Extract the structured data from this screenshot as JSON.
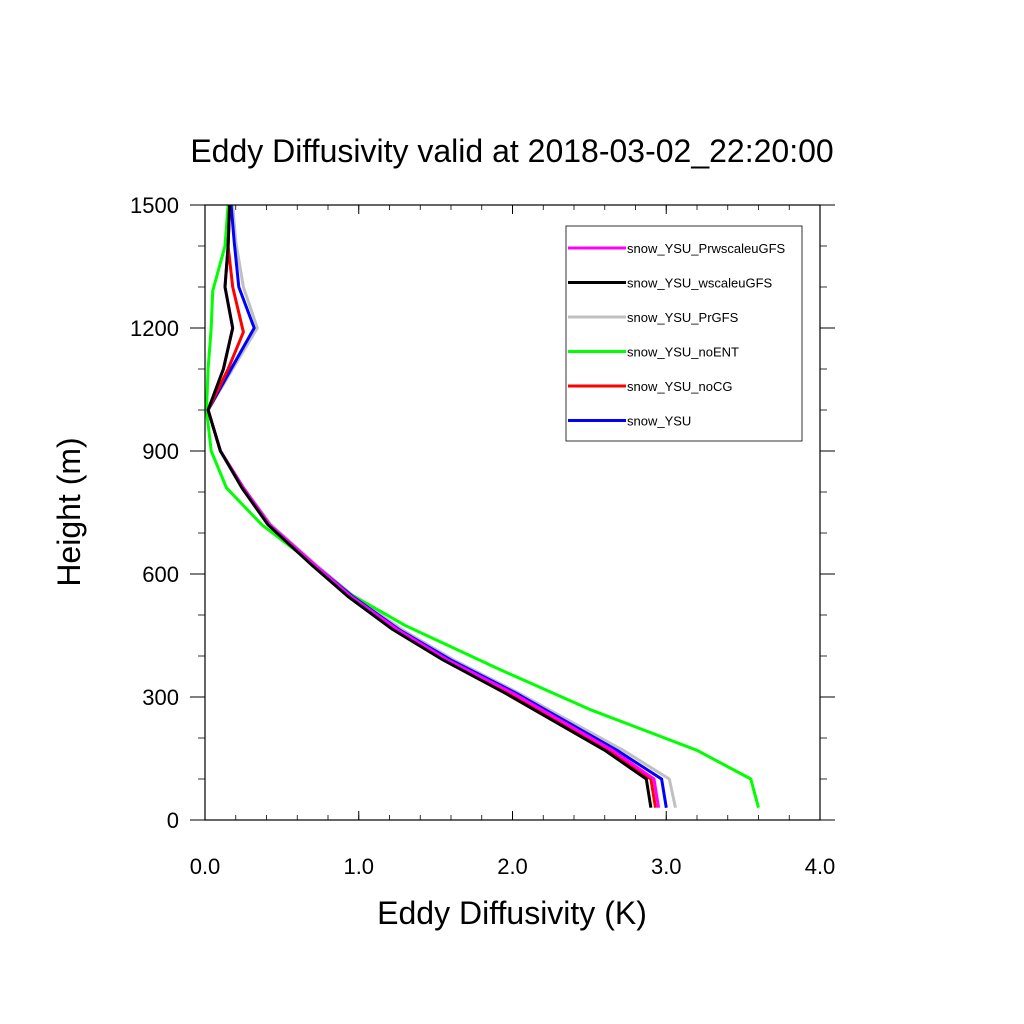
{
  "chart_data": {
    "type": "line",
    "title": "Eddy Diffusivity valid at 2018-03-02_22:20:00",
    "xlabel": "Eddy Diffusivity (K)",
    "ylabel": "Height (m)",
    "xlim": [
      0,
      4
    ],
    "ylim": [
      0,
      1500
    ],
    "x_ticks": [
      0,
      1,
      2,
      3,
      4
    ],
    "x_tick_labels": [
      "0.0",
      "1.0",
      "2.0",
      "3.0",
      "4.0"
    ],
    "y_ticks": [
      0,
      300,
      600,
      900,
      1200,
      1500
    ],
    "y_tick_labels": [
      "0",
      "300",
      "600",
      "900",
      "1200",
      "1500"
    ],
    "grid": false,
    "legend_position": "top-right",
    "series": [
      {
        "name": "snow_YSU_PrwscaleuGFS",
        "color": "#ff00ff",
        "points": [
          [
            2.95,
            30
          ],
          [
            2.92,
            100
          ],
          [
            2.65,
            170
          ],
          [
            2.0,
            310
          ],
          [
            1.58,
            390
          ],
          [
            1.25,
            465
          ],
          [
            0.95,
            545
          ],
          [
            0.72,
            620
          ],
          [
            0.42,
            720
          ],
          [
            0.25,
            810
          ],
          [
            0.1,
            900
          ],
          [
            0.02,
            1000
          ],
          [
            0.12,
            1100
          ],
          [
            0.18,
            1200
          ],
          [
            0.13,
            1300
          ],
          [
            0.15,
            1400
          ],
          [
            0.16,
            1500
          ]
        ]
      },
      {
        "name": "snow_YSU_wscaleuGFS",
        "color": "#000000",
        "points": [
          [
            2.9,
            30
          ],
          [
            2.87,
            100
          ],
          [
            2.6,
            170
          ],
          [
            1.95,
            310
          ],
          [
            1.55,
            390
          ],
          [
            1.22,
            465
          ],
          [
            0.93,
            545
          ],
          [
            0.7,
            620
          ],
          [
            0.41,
            720
          ],
          [
            0.24,
            810
          ],
          [
            0.1,
            900
          ],
          [
            0.02,
            1000
          ],
          [
            0.12,
            1100
          ],
          [
            0.18,
            1200
          ],
          [
            0.13,
            1300
          ],
          [
            0.15,
            1400
          ],
          [
            0.16,
            1500
          ]
        ]
      },
      {
        "name": "snow_YSU_PrGFS",
        "color": "#c0c0c0",
        "points": [
          [
            3.06,
            30
          ],
          [
            3.02,
            100
          ],
          [
            2.72,
            170
          ],
          [
            2.04,
            310
          ],
          [
            1.62,
            390
          ],
          [
            1.28,
            465
          ],
          [
            0.97,
            545
          ],
          [
            0.73,
            620
          ],
          [
            0.43,
            720
          ],
          [
            0.25,
            810
          ],
          [
            0.1,
            900
          ],
          [
            0.02,
            1000
          ],
          [
            0.18,
            1100
          ],
          [
            0.34,
            1200
          ],
          [
            0.25,
            1300
          ],
          [
            0.2,
            1410
          ],
          [
            0.18,
            1500
          ]
        ]
      },
      {
        "name": "snow_YSU_noENT",
        "color": "#00ff00",
        "points": [
          [
            3.6,
            30
          ],
          [
            3.55,
            100
          ],
          [
            3.2,
            170
          ],
          [
            2.5,
            270
          ],
          [
            1.9,
            370
          ],
          [
            1.3,
            475
          ],
          [
            0.95,
            550
          ],
          [
            0.65,
            640
          ],
          [
            0.37,
            720
          ],
          [
            0.14,
            810
          ],
          [
            0.04,
            900
          ],
          [
            0.01,
            1000
          ],
          [
            0.02,
            1100
          ],
          [
            0.04,
            1200
          ],
          [
            0.05,
            1290
          ],
          [
            0.13,
            1400
          ],
          [
            0.15,
            1500
          ]
        ]
      },
      {
        "name": "snow_YSU_noCG",
        "color": "#ff0000",
        "points": [
          [
            2.93,
            30
          ],
          [
            2.9,
            100
          ],
          [
            2.63,
            170
          ],
          [
            1.98,
            310
          ],
          [
            1.57,
            390
          ],
          [
            1.24,
            465
          ],
          [
            0.94,
            545
          ],
          [
            0.71,
            620
          ],
          [
            0.42,
            720
          ],
          [
            0.25,
            810
          ],
          [
            0.1,
            900
          ],
          [
            0.02,
            1000
          ],
          [
            0.15,
            1100
          ],
          [
            0.25,
            1190
          ],
          [
            0.18,
            1300
          ],
          [
            0.15,
            1400
          ],
          [
            0.16,
            1500
          ]
        ]
      },
      {
        "name": "snow_YSU",
        "color": "#0000ff",
        "points": [
          [
            3.0,
            30
          ],
          [
            2.97,
            100
          ],
          [
            2.68,
            170
          ],
          [
            2.02,
            310
          ],
          [
            1.6,
            390
          ],
          [
            1.26,
            465
          ],
          [
            0.96,
            545
          ],
          [
            0.72,
            620
          ],
          [
            0.42,
            720
          ],
          [
            0.25,
            810
          ],
          [
            0.1,
            900
          ],
          [
            0.02,
            1000
          ],
          [
            0.17,
            1100
          ],
          [
            0.32,
            1200
          ],
          [
            0.22,
            1300
          ],
          [
            0.19,
            1410
          ],
          [
            0.17,
            1500
          ]
        ]
      }
    ]
  }
}
